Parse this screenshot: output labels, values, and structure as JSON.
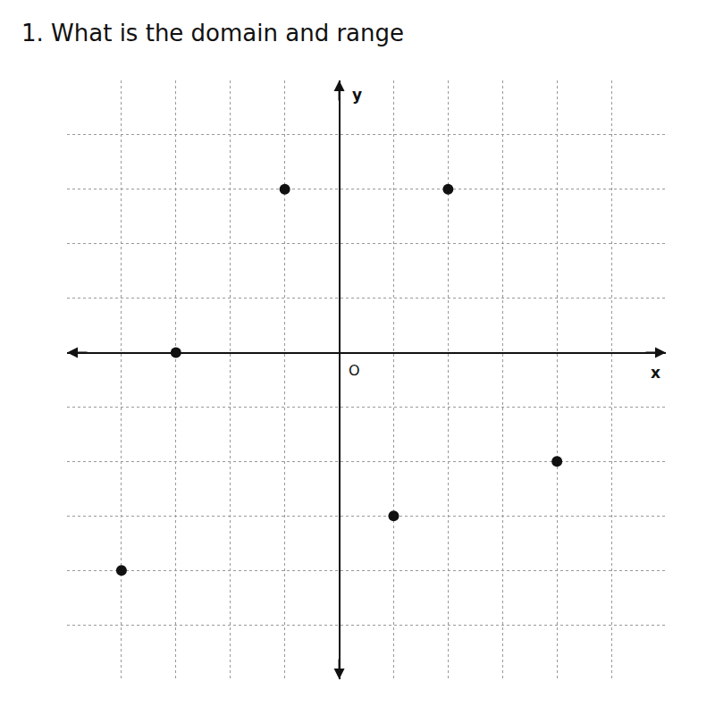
{
  "chart_data": {
    "type": "scatter",
    "title": "1. What is the domain and range",
    "x": [
      -1,
      2,
      -3,
      4,
      1,
      -4
    ],
    "values": [
      3,
      3,
      0,
      -2,
      -3,
      -4
    ],
    "color": "#111111",
    "marker": "circle",
    "xlabel": "x",
    "ylabel": "y",
    "annotations": [
      "O"
    ],
    "xlim": [
      -5,
      6
    ],
    "ylim": [
      -6,
      5
    ],
    "xticks": [
      -5,
      -4,
      -3,
      -2,
      -1,
      0,
      1,
      2,
      3,
      4,
      5,
      6
    ],
    "yticks": [
      -6,
      -5,
      -4,
      -3,
      -2,
      -1,
      0,
      1,
      2,
      3,
      4,
      5
    ],
    "grid": true,
    "tick_labels": false
  }
}
